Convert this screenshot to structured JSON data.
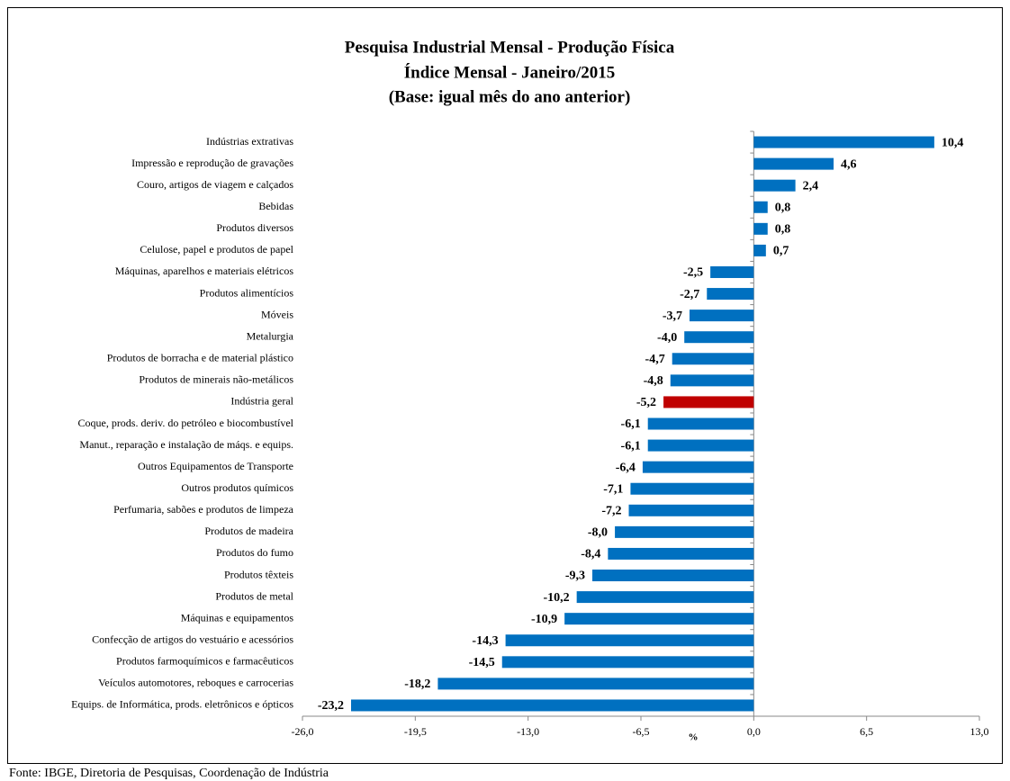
{
  "chart_data": {
    "type": "barh",
    "title": [
      "Pesquisa Industrial Mensal - Produção Física",
      "Índice Mensal - Janeiro/2015",
      "(Base: igual mês do ano anterior)"
    ],
    "categories": [
      "Indústrias extrativas",
      "Impressão e reprodução de gravações",
      "Couro, artigos de viagem e calçados",
      "Bebidas",
      "Produtos diversos",
      "Celulose, papel e produtos de papel",
      "Máquinas, aparelhos e materiais elétricos",
      "Produtos alimentícios",
      "Móveis",
      "Metalurgia",
      "Produtos de borracha e de material plástico",
      "Produtos de minerais não-metálicos",
      "Indústria geral",
      "Coque, prods. deriv. do petróleo e biocombustível",
      "Manut., reparação e instalação de máqs. e equips.",
      "Outros Equipamentos de Transporte",
      "Outros produtos químicos",
      "Perfumaria, sabões e produtos de limpeza",
      "Produtos de madeira",
      "Produtos do fumo",
      "Produtos têxteis",
      "Produtos de metal",
      "Máquinas e equipamentos",
      "Confecção de artigos do vestuário e acessórios",
      "Produtos farmoquímicos e farmacêuticos",
      "Veículos automotores, reboques e carrocerias",
      "Equips. de Informática, prods. eletrônicos e ópticos"
    ],
    "values": [
      10.4,
      4.6,
      2.4,
      0.8,
      0.8,
      0.7,
      -2.5,
      -2.7,
      -3.7,
      -4.0,
      -4.7,
      -4.8,
      -5.2,
      -6.1,
      -6.1,
      -6.4,
      -7.1,
      -7.2,
      -8.0,
      -8.4,
      -9.3,
      -10.2,
      -10.9,
      -14.3,
      -14.5,
      -18.2,
      -23.2
    ],
    "value_labels": [
      "10,4",
      "4,6",
      "2,4",
      "0,8",
      "0,8",
      "0,7",
      "-2,5",
      "-2,7",
      "-3,7",
      "-4,0",
      "-4,7",
      "-4,8",
      "-5,2",
      "-6,1",
      "-6,1",
      "-6,4",
      "-7,1",
      "-7,2",
      "-8,0",
      "-8,4",
      "-9,3",
      "-10,2",
      "-10,9",
      "-14,3",
      "-14,5",
      "-18,2",
      "-23,2"
    ],
    "colors": [
      "#0070c0",
      "#0070c0",
      "#0070c0",
      "#0070c0",
      "#0070c0",
      "#0070c0",
      "#0070c0",
      "#0070c0",
      "#0070c0",
      "#0070c0",
      "#0070c0",
      "#0070c0",
      "#c00000",
      "#0070c0",
      "#0070c0",
      "#0070c0",
      "#0070c0",
      "#0070c0",
      "#0070c0",
      "#0070c0",
      "#0070c0",
      "#0070c0",
      "#0070c0",
      "#0070c0",
      "#0070c0",
      "#0070c0",
      "#0070c0"
    ],
    "xlabel": "%",
    "xlim": [
      -26,
      13
    ],
    "xticks": [
      {
        "value": -26,
        "label": "-26,0"
      },
      {
        "value": -19.5,
        "label": "-19,5"
      },
      {
        "value": -13,
        "label": "-13,0"
      },
      {
        "value": -6.5,
        "label": "-6,5"
      },
      {
        "value": 0,
        "label": "0,0"
      },
      {
        "value": 6.5,
        "label": "6,5"
      },
      {
        "value": 13,
        "label": "13,0"
      }
    ],
    "source": "Fonte: IBGE, Diretoria de Pesquisas, Coordenação de Indústria"
  }
}
